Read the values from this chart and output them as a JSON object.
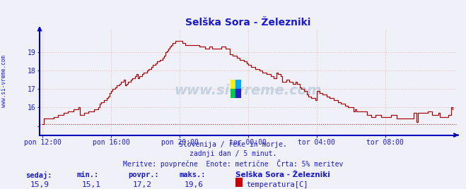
{
  "title": "Selška Sora - Železniki",
  "title_color": "#1a1acc",
  "bg_color": "#f0f0f8",
  "plot_bg_color": "#f0f0f8",
  "grid_color": "#e8b8b8",
  "line_color": "#aa0000",
  "axis_color": "#0000bb",
  "tick_color": "#1a1acc",
  "ylim": [
    14.5,
    20.3
  ],
  "ytick_vals": [
    15,
    16,
    17,
    18,
    19
  ],
  "ytick_labels": [
    "",
    "16",
    "17",
    "18",
    "19"
  ],
  "min_val": 15.1,
  "avg_val": 17.2,
  "max_val": 19.6,
  "current_val": 15.9,
  "station": "Selška Sora - Železniki",
  "text1": "Slovenija / reke in morje.",
  "text2": "zadnji dan / 5 minut.",
  "text3": "Meritve: povprečne  Enote: metrične  Črta: 5% meritev",
  "text_color": "#1a1acc",
  "label_sedaj": "sedaj:",
  "label_min": "min.:",
  "label_povpr": "povpr.:",
  "label_maks": "maks.:",
  "legend_label": "temperatura[C]",
  "legend_color": "#cc0000",
  "xticklabels": [
    "pon 12:00",
    "pon 16:00",
    "pon 20:00",
    "tor 00:00",
    "tor 04:00",
    "tor 08:00"
  ],
  "xtick_positions": [
    0,
    48,
    96,
    144,
    192,
    240
  ],
  "total_points": 288,
  "ylabel_left": "www.si-vreme.com",
  "watermark": "www.si-vreme.com"
}
